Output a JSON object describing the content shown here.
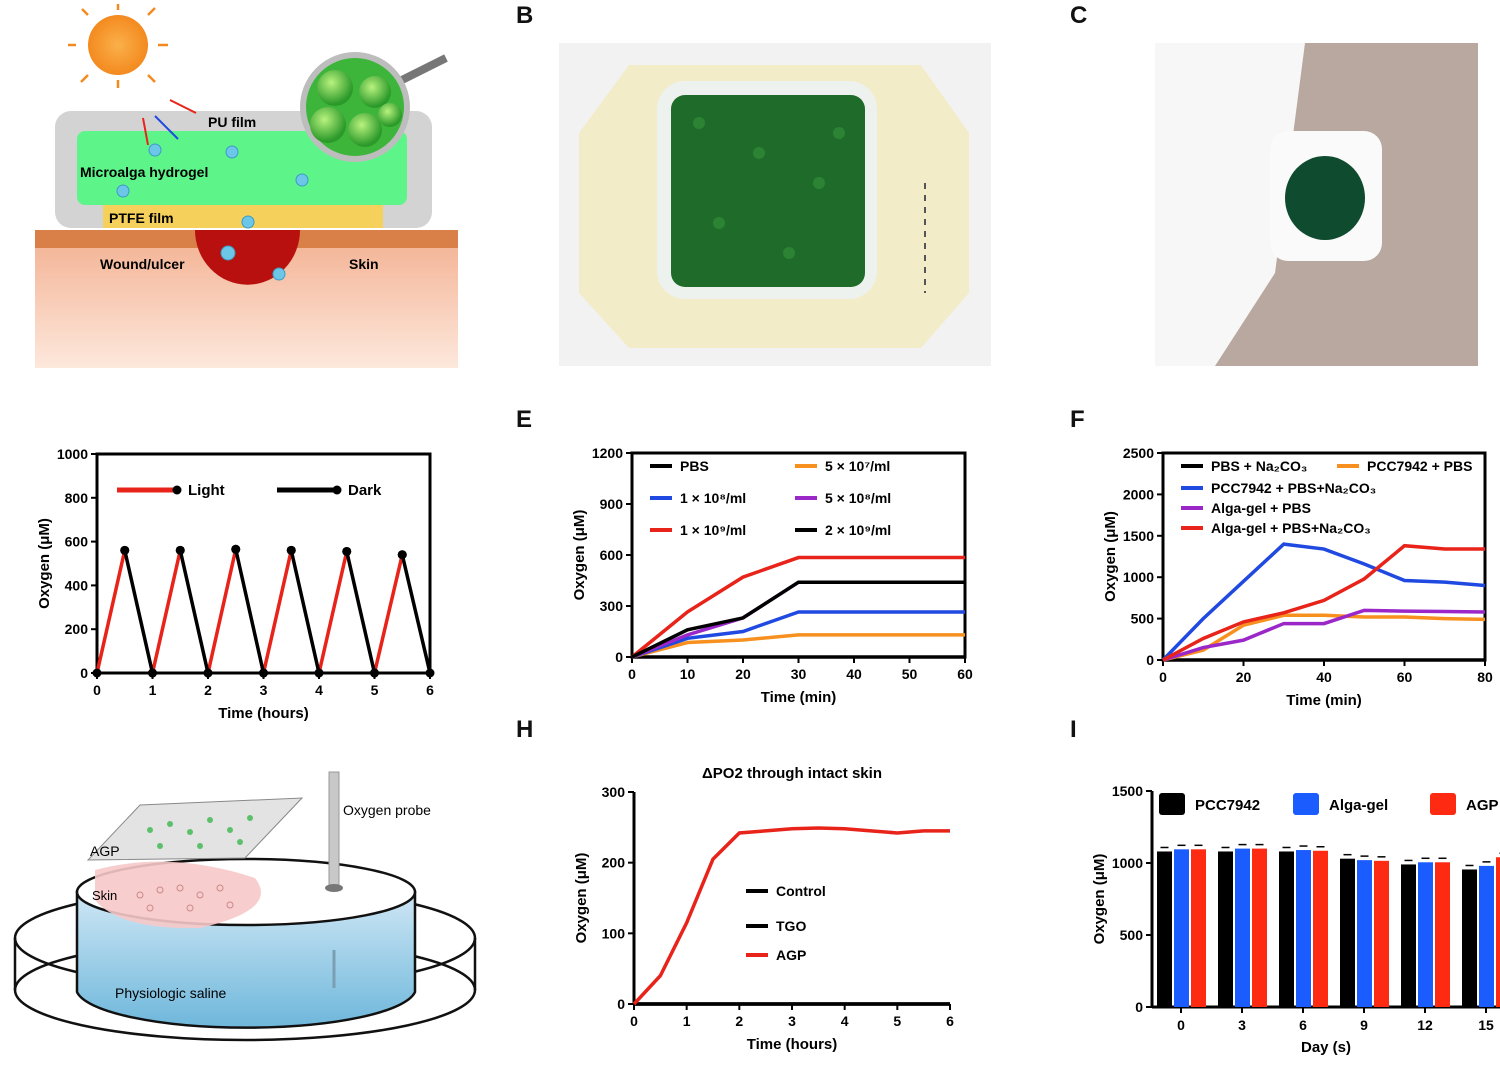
{
  "panel_labels": {
    "b": "B",
    "c": "C",
    "e": "E",
    "f": "F",
    "h": "H",
    "i": "I"
  },
  "schematic_a": {
    "pu_film": "PU film",
    "hydrogel": "Microalga hydrogel",
    "ptfe_film": "PTFE film",
    "wound": "Wound/ulcer",
    "skin": "Skin",
    "o2_symbol": "O₂"
  },
  "schematic_g": {
    "oxygen_probe": "Oxygen probe",
    "agp": "AGP",
    "skin": "Skin",
    "saline": "Physiologic saline"
  },
  "colors": {
    "black": "#000000",
    "red": "#e8231a",
    "blue": "#1f49e0",
    "orange": "#f7901e",
    "purple": "#9b27c9",
    "bright_red": "#ff2a12",
    "bright_blue": "#1b5cff"
  },
  "chart_data": [
    {
      "id": "D",
      "type": "line",
      "xlabel": "Time (hours)",
      "ylabel": "Oxygen (μM)",
      "xlim": [
        0,
        6
      ],
      "ylim": [
        0,
        1000
      ],
      "xticks": [
        0,
        1,
        2,
        3,
        4,
        5,
        6
      ],
      "yticks": [
        0,
        200,
        400,
        600,
        800,
        1000
      ],
      "legend_position": "top",
      "series": [
        {
          "name": "Light",
          "color": "#e8231a",
          "segments": [
            [
              [
                0,
                0
              ],
              [
                0.5,
                560
              ]
            ],
            [
              [
                1,
                0
              ],
              [
                1.5,
                560
              ]
            ],
            [
              [
                2,
                0
              ],
              [
                2.5,
                565
              ]
            ],
            [
              [
                3,
                0
              ],
              [
                3.5,
                560
              ]
            ],
            [
              [
                4,
                0
              ],
              [
                4.5,
                555
              ]
            ],
            [
              [
                5,
                0
              ],
              [
                5.5,
                540
              ]
            ]
          ]
        },
        {
          "name": "Dark",
          "color": "#000000",
          "segments": [
            [
              [
                0.5,
                560
              ],
              [
                1,
                0
              ]
            ],
            [
              [
                1.5,
                560
              ],
              [
                2,
                0
              ]
            ],
            [
              [
                2.5,
                565
              ],
              [
                3,
                0
              ]
            ],
            [
              [
                3.5,
                560
              ],
              [
                4,
                0
              ]
            ],
            [
              [
                4.5,
                555
              ],
              [
                5,
                0
              ]
            ],
            [
              [
                5.5,
                540
              ],
              [
                6,
                0
              ]
            ]
          ]
        }
      ]
    },
    {
      "id": "E",
      "type": "line",
      "xlabel": "Time (min)",
      "ylabel": "Oxygen (μM)",
      "xlim": [
        0,
        60
      ],
      "ylim": [
        0,
        1200
      ],
      "xticks": [
        0,
        10,
        20,
        30,
        40,
        50,
        60
      ],
      "yticks": [
        0,
        300,
        600,
        900,
        1200
      ],
      "legend_position": "top",
      "series": [
        {
          "name": "PBS",
          "color": "#000000",
          "x": [
            0,
            10,
            20,
            30,
            40,
            50,
            60
          ],
          "y": [
            0,
            0,
            0,
            0,
            0,
            0,
            0
          ]
        },
        {
          "name": "5 × 10⁷/ml",
          "color": "#f7901e",
          "x": [
            0,
            10,
            20,
            30,
            40,
            50,
            60
          ],
          "y": [
            0,
            85,
            100,
            130,
            130,
            130,
            130
          ]
        },
        {
          "name": "1 × 10⁸/ml",
          "color": "#1f49e0",
          "x": [
            0,
            10,
            20,
            30,
            40,
            50,
            60
          ],
          "y": [
            0,
            110,
            150,
            265,
            265,
            265,
            265
          ]
        },
        {
          "name": "5 × 10⁸/ml",
          "color": "#9b27c9",
          "x": [
            0,
            10,
            20,
            30,
            40,
            50,
            60
          ],
          "y": [
            0,
            130,
            230,
            440,
            440,
            440,
            440
          ]
        },
        {
          "name": "1 × 10⁹/ml",
          "color": "#e8231a",
          "x": [
            0,
            10,
            20,
            30,
            40,
            50,
            60
          ],
          "y": [
            0,
            265,
            470,
            585,
            585,
            585,
            585
          ]
        },
        {
          "name": "2 × 10⁹/ml",
          "color": "#000000",
          "x": [
            0,
            10,
            20,
            30,
            40,
            50,
            60
          ],
          "y": [
            0,
            160,
            230,
            440,
            440,
            440,
            440
          ]
        }
      ]
    },
    {
      "id": "F",
      "type": "line",
      "xlabel": "Time (min)",
      "ylabel": "Oxygen (μM)",
      "xlim": [
        0,
        80
      ],
      "ylim": [
        0,
        2500
      ],
      "xticks": [
        0,
        20,
        40,
        60,
        80
      ],
      "yticks": [
        0,
        500,
        1000,
        1500,
        2000,
        2500
      ],
      "legend_position": "top",
      "series": [
        {
          "name": "PBS + Na₂CO₃",
          "color": "#000000",
          "x": [
            0,
            10,
            20,
            30,
            40,
            50,
            60,
            70,
            80
          ],
          "y": [
            0,
            0,
            0,
            0,
            0,
            0,
            0,
            0,
            0
          ]
        },
        {
          "name": "PCC7942 + PBS",
          "color": "#f7901e",
          "x": [
            0,
            10,
            20,
            30,
            40,
            50,
            60,
            70,
            80
          ],
          "y": [
            0,
            120,
            420,
            540,
            540,
            520,
            520,
            500,
            490
          ]
        },
        {
          "name": "PCC7942 + PBS+Na₂CO₃",
          "color": "#1f49e0",
          "x": [
            0,
            10,
            20,
            30,
            40,
            50,
            60,
            70,
            80
          ],
          "y": [
            0,
            500,
            950,
            1400,
            1340,
            1160,
            960,
            940,
            900
          ]
        },
        {
          "name": "Alga-gel + PBS",
          "color": "#9b27c9",
          "x": [
            0,
            10,
            20,
            30,
            40,
            50,
            60,
            70,
            80
          ],
          "y": [
            0,
            150,
            240,
            440,
            440,
            600,
            590,
            585,
            580
          ]
        },
        {
          "name": "Alga-gel + PBS+Na₂CO₃",
          "color": "#e8231a",
          "x": [
            0,
            10,
            20,
            30,
            40,
            50,
            60,
            70,
            80
          ],
          "y": [
            0,
            260,
            460,
            570,
            720,
            980,
            1380,
            1340,
            1340
          ]
        }
      ]
    },
    {
      "id": "H",
      "type": "line",
      "title": "ΔPO2 through intact skin",
      "xlabel": "Time (hours)",
      "ylabel": "Oxygen (μM)",
      "xlim": [
        0,
        6
      ],
      "ylim": [
        0,
        300
      ],
      "xticks": [
        0,
        1,
        2,
        3,
        4,
        5,
        6
      ],
      "yticks": [
        0,
        100,
        200,
        300
      ],
      "legend_position": "center",
      "series": [
        {
          "name": "Control",
          "color": "#000000",
          "x": [
            0,
            6
          ],
          "y": [
            0,
            0
          ]
        },
        {
          "name": "TGO",
          "color": "#000000",
          "x": [
            0,
            6
          ],
          "y": [
            0,
            0
          ]
        },
        {
          "name": "AGP",
          "color": "#e8231a",
          "x": [
            0,
            0.5,
            1,
            1.5,
            2,
            2.5,
            3,
            3.5,
            4,
            4.5,
            5,
            5.5,
            6
          ],
          "y": [
            0,
            40,
            115,
            205,
            242,
            245,
            248,
            249,
            248,
            245,
            242,
            245,
            245
          ]
        }
      ]
    },
    {
      "id": "I",
      "type": "bar",
      "xlabel": "Day (s)",
      "ylabel": "Oxygen (μM)",
      "ylim": [
        0,
        1500
      ],
      "yticks": [
        0,
        500,
        1000,
        1500
      ],
      "categories": [
        "0",
        "3",
        "6",
        "9",
        "12",
        "15"
      ],
      "legend_position": "top",
      "series": [
        {
          "name": "PCC7942",
          "color": "#000000",
          "values": [
            1080,
            1080,
            1080,
            1030,
            990,
            955
          ]
        },
        {
          "name": "Alga-gel",
          "color": "#1b5cff",
          "values": [
            1095,
            1100,
            1090,
            1020,
            1005,
            980
          ]
        },
        {
          "name": "AGP",
          "color": "#ff2a12",
          "values": [
            1095,
            1100,
            1085,
            1015,
            1005,
            1040
          ]
        }
      ]
    }
  ]
}
